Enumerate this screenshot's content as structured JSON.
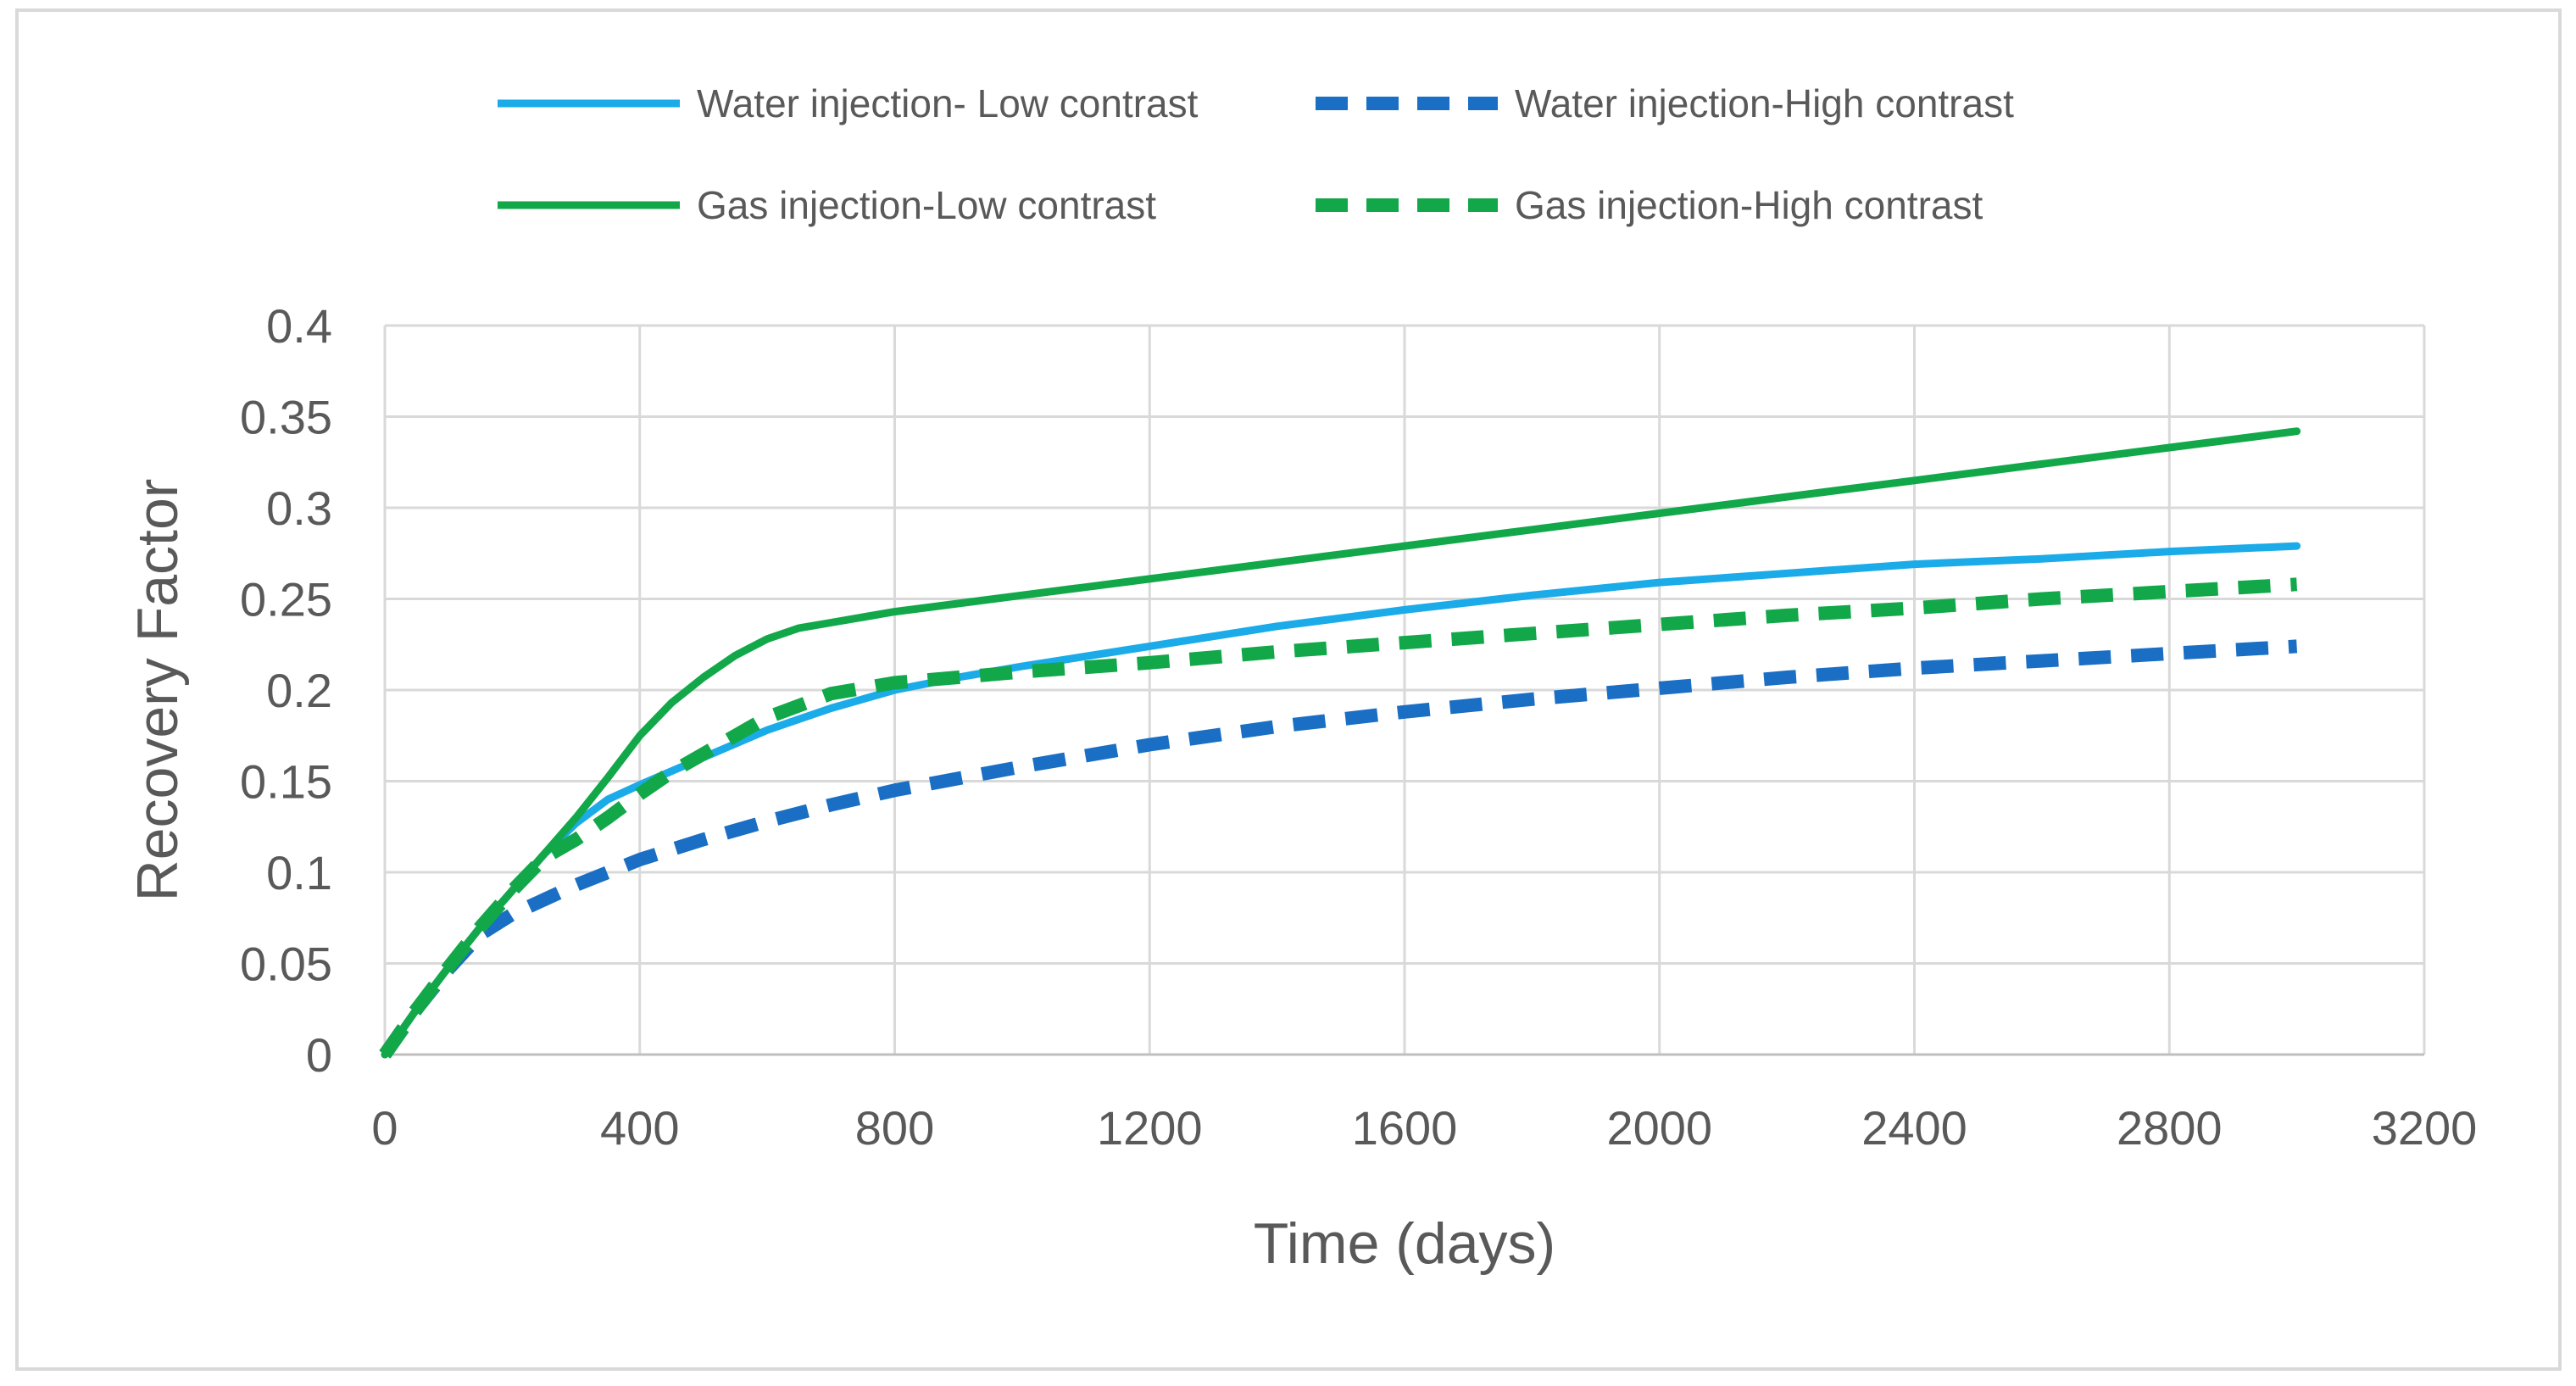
{
  "chart_data": {
    "type": "line",
    "title": "",
    "xlabel": "Time (days)",
    "ylabel": "Recovery Factor",
    "xlim": [
      0,
      3200
    ],
    "ylim": [
      0,
      0.4
    ],
    "xticks": [
      "0",
      "400",
      "800",
      "1200",
      "1600",
      "2000",
      "2400",
      "2800",
      "3200"
    ],
    "yticks": [
      "0",
      "0.05",
      "0.1",
      "0.15",
      "0.2",
      "0.25",
      "0.3",
      "0.35",
      "0.4"
    ],
    "grid": true,
    "legend_position": "top",
    "series": [
      {
        "name": "Water injection- Low contrast",
        "color": "#1aabe8",
        "style": "solid",
        "x": [
          0,
          50,
          100,
          150,
          200,
          250,
          300,
          350,
          400,
          500,
          600,
          700,
          800,
          900,
          1000,
          1200,
          1400,
          1600,
          1800,
          2000,
          2200,
          2400,
          2600,
          2800,
          3000
        ],
        "y": [
          0,
          0.025,
          0.048,
          0.07,
          0.09,
          0.11,
          0.127,
          0.14,
          0.148,
          0.163,
          0.178,
          0.19,
          0.2,
          0.207,
          0.213,
          0.224,
          0.235,
          0.244,
          0.252,
          0.259,
          0.264,
          0.269,
          0.272,
          0.276,
          0.279
        ]
      },
      {
        "name": "Water injection-High contrast",
        "color": "#1a6fc4",
        "style": "dashed",
        "x": [
          0,
          50,
          100,
          150,
          200,
          300,
          400,
          500,
          600,
          700,
          800,
          1000,
          1200,
          1400,
          1600,
          1800,
          2000,
          2200,
          2400,
          2600,
          2800,
          3000
        ],
        "y": [
          0,
          0.025,
          0.047,
          0.066,
          0.077,
          0.093,
          0.107,
          0.118,
          0.128,
          0.137,
          0.145,
          0.158,
          0.17,
          0.18,
          0.188,
          0.195,
          0.201,
          0.207,
          0.212,
          0.216,
          0.22,
          0.224
        ]
      },
      {
        "name": "Gas injection-Low contrast",
        "color": "#12a84a",
        "style": "solid",
        "x": [
          0,
          50,
          100,
          150,
          200,
          250,
          300,
          350,
          400,
          450,
          500,
          550,
          600,
          650,
          700,
          800,
          1000,
          1200,
          1400,
          1600,
          1800,
          2000,
          2200,
          2400,
          2600,
          2800,
          3000
        ],
        "y": [
          0,
          0.025,
          0.048,
          0.07,
          0.09,
          0.11,
          0.13,
          0.152,
          0.175,
          0.193,
          0.207,
          0.219,
          0.228,
          0.234,
          0.237,
          0.243,
          0.252,
          0.261,
          0.27,
          0.279,
          0.288,
          0.297,
          0.306,
          0.315,
          0.324,
          0.333,
          0.342
        ]
      },
      {
        "name": "Gas injection-High contrast",
        "color": "#12a84a",
        "style": "dashed",
        "x": [
          0,
          50,
          100,
          150,
          200,
          250,
          300,
          350,
          400,
          450,
          500,
          600,
          700,
          800,
          900,
          1000,
          1200,
          1400,
          1600,
          1800,
          2000,
          2200,
          2400,
          2600,
          2800,
          3000
        ],
        "y": [
          0,
          0.025,
          0.048,
          0.07,
          0.09,
          0.108,
          0.118,
          0.13,
          0.143,
          0.155,
          0.165,
          0.185,
          0.198,
          0.204,
          0.207,
          0.21,
          0.215,
          0.221,
          0.226,
          0.231,
          0.236,
          0.241,
          0.245,
          0.25,
          0.254,
          0.258
        ]
      }
    ]
  }
}
